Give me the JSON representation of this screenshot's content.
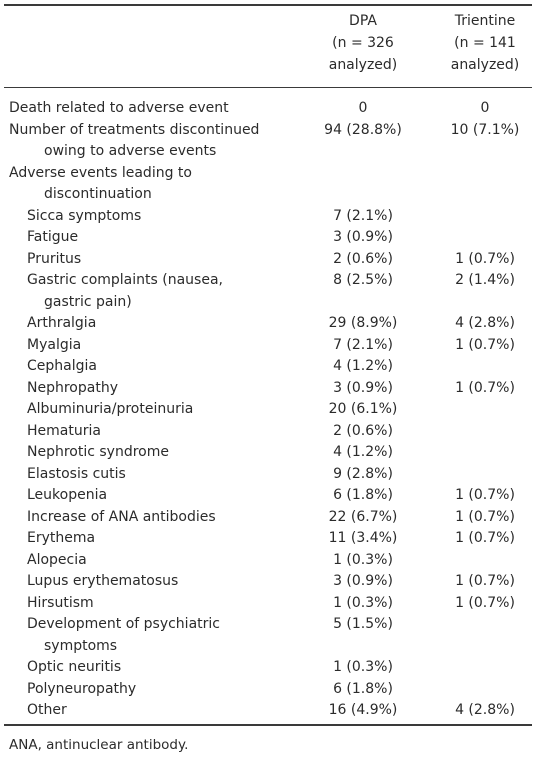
{
  "header": {
    "dpa": [
      "DPA",
      "(n = 326",
      "analyzed)"
    ],
    "trientine": [
      "Trientine",
      "(n = 141",
      "analyzed)"
    ]
  },
  "rows": [
    {
      "label": "Death related to adverse event",
      "level": 0,
      "dpa": "0",
      "trientine": "0"
    },
    {
      "label": "Number of treatments discontinued",
      "level": 0,
      "dpa": "94 (28.8%)",
      "trientine": "10 (7.1%)"
    },
    {
      "label": "owing to adverse events",
      "level": 2,
      "dpa": "",
      "trientine": ""
    },
    {
      "label": "Adverse events leading to",
      "level": 0,
      "dpa": "",
      "trientine": ""
    },
    {
      "label": "discontinuation",
      "level": 2,
      "dpa": "",
      "trientine": ""
    },
    {
      "label": "Sicca symptoms",
      "level": 1,
      "dpa": "7 (2.1%)",
      "trientine": ""
    },
    {
      "label": "Fatigue",
      "level": 1,
      "dpa": "3 (0.9%)",
      "trientine": ""
    },
    {
      "label": "Pruritus",
      "level": 1,
      "dpa": "2 (0.6%)",
      "trientine": "1 (0.7%)"
    },
    {
      "label": "Gastric complaints (nausea,",
      "level": 1,
      "dpa": "8 (2.5%)",
      "trientine": "2 (1.4%)"
    },
    {
      "label": "gastric pain)",
      "level": 2,
      "dpa": "",
      "trientine": ""
    },
    {
      "label": "Arthralgia",
      "level": 1,
      "dpa": "29 (8.9%)",
      "trientine": "4 (2.8%)"
    },
    {
      "label": "Myalgia",
      "level": 1,
      "dpa": "7 (2.1%)",
      "trientine": "1 (0.7%)"
    },
    {
      "label": "Cephalgia",
      "level": 1,
      "dpa": "4 (1.2%)",
      "trientine": ""
    },
    {
      "label": "Nephropathy",
      "level": 1,
      "dpa": "3 (0.9%)",
      "trientine": "1 (0.7%)"
    },
    {
      "label": "Albuminuria/proteinuria",
      "level": 1,
      "dpa": "20 (6.1%)",
      "trientine": ""
    },
    {
      "label": "Hematuria",
      "level": 1,
      "dpa": "2 (0.6%)",
      "trientine": ""
    },
    {
      "label": "Nephrotic syndrome",
      "level": 1,
      "dpa": "4 (1.2%)",
      "trientine": ""
    },
    {
      "label": "Elastosis cutis",
      "level": 1,
      "dpa": "9 (2.8%)",
      "trientine": ""
    },
    {
      "label": "Leukopenia",
      "level": 1,
      "dpa": "6 (1.8%)",
      "trientine": "1 (0.7%)"
    },
    {
      "label": "Increase of ANA antibodies",
      "level": 1,
      "dpa": "22 (6.7%)",
      "trientine": "1 (0.7%)"
    },
    {
      "label": "Erythema",
      "level": 1,
      "dpa": "11 (3.4%)",
      "trientine": "1 (0.7%)"
    },
    {
      "label": "Alopecia",
      "level": 1,
      "dpa": "1 (0.3%)",
      "trientine": ""
    },
    {
      "label": "Lupus erythematosus",
      "level": 1,
      "dpa": "3 (0.9%)",
      "trientine": "1 (0.7%)"
    },
    {
      "label": "Hirsutism",
      "level": 1,
      "dpa": "1 (0.3%)",
      "trientine": "1 (0.7%)"
    },
    {
      "label": "Development of psychiatric",
      "level": 1,
      "dpa": "5 (1.5%)",
      "trientine": ""
    },
    {
      "label": "symptoms",
      "level": 2,
      "dpa": "",
      "trientine": ""
    },
    {
      "label": "Optic neuritis",
      "level": 1,
      "dpa": "1 (0.3%)",
      "trientine": ""
    },
    {
      "label": "Polyneuropathy",
      "level": 1,
      "dpa": "6 (1.8%)",
      "trientine": ""
    },
    {
      "label": "Other",
      "level": 1,
      "dpa": "16 (4.9%)",
      "trientine": "4 (2.8%)"
    }
  ],
  "footnote": "ANA, antinuclear antibody."
}
